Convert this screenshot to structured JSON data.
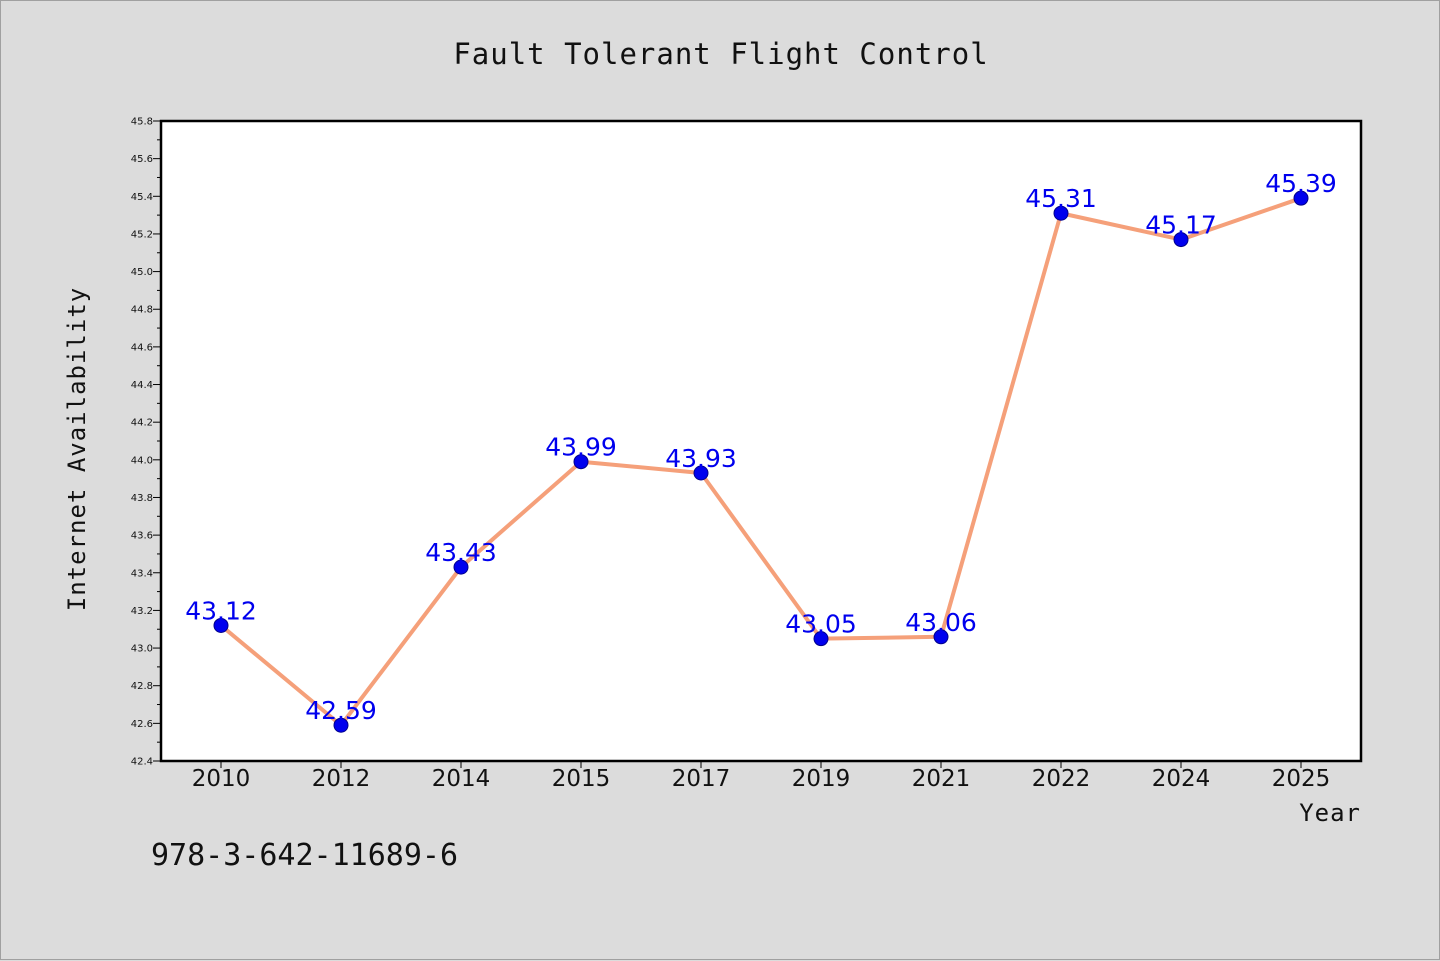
{
  "chart_data": {
    "type": "line",
    "title": "Fault Tolerant Flight Control",
    "xlabel": "Year",
    "ylabel": "Internet Availability",
    "categories": [
      "2010",
      "2012",
      "2014",
      "2015",
      "2017",
      "2019",
      "2021",
      "2022",
      "2024",
      "2025"
    ],
    "series": [
      {
        "values": [
          43.12,
          42.59,
          43.43,
          43.99,
          43.93,
          43.05,
          43.06,
          45.31,
          45.17,
          45.39
        ]
      }
    ],
    "data_labels": [
      "43.12",
      "42.59",
      "43.43",
      "43.99",
      "43.93",
      "43.05",
      "43.06",
      "45.31",
      "45.17",
      "45.39"
    ],
    "ylim": [
      42.4,
      45.8
    ],
    "yticks": [
      "42.4",
      "42.6",
      "42.8",
      "43.0",
      "43.2",
      "43.4",
      "43.6",
      "43.8",
      "44.0",
      "44.2",
      "44.4",
      "44.6",
      "44.8",
      "45.0",
      "45.2",
      "45.4",
      "45.6",
      "45.8"
    ],
    "grid": false,
    "legend": "none",
    "colors": {
      "line": "#f5a07a",
      "marker": "#0000ee",
      "label": "#0000ee",
      "plot_background": "#ffffff",
      "figure_background": "#dcdcdc"
    }
  },
  "footer": {
    "isbn": "978-3-642-11689-6"
  }
}
